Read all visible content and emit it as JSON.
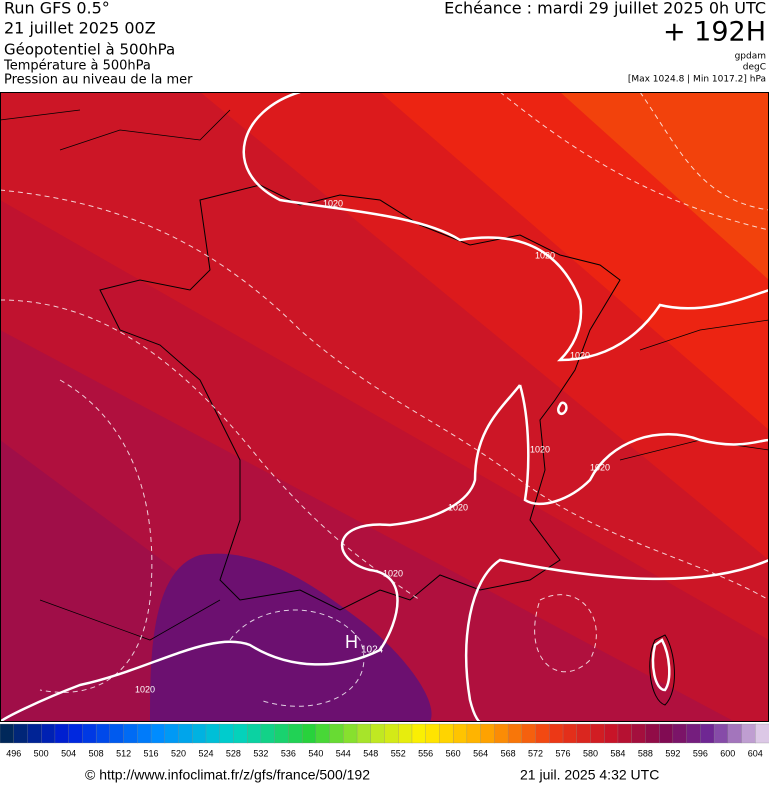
{
  "header": {
    "run": "Run GFS 0.5°",
    "date": "21 juillet 2025 00Z",
    "fields": [
      "Géopotentiel à 500hPa",
      "Température à 500hPa",
      "Pression au niveau de la mer"
    ],
    "forecast": "Echéance : mardi 29 juillet 2025 0h UTC",
    "lead": "+ 192H",
    "units": [
      "gpdam",
      "degC"
    ],
    "range": "[Max 1024.8 | Min 1017.2] hPa"
  },
  "map": {
    "isobar_labels": [
      "1020",
      "1020",
      "1020",
      "1020",
      "1020",
      "1020",
      "1020",
      "1020"
    ],
    "high": {
      "symbol": "H",
      "value": "1024"
    }
  },
  "colorbar": {
    "labels": [
      496,
      500,
      504,
      508,
      512,
      516,
      520,
      524,
      528,
      532,
      536,
      540,
      544,
      548,
      552,
      556,
      560,
      564,
      568,
      572,
      576,
      580,
      584,
      588,
      592,
      596,
      600,
      604
    ]
  },
  "footer": {
    "source": "© http://www.infoclimat.fr/z/gfs/france/500/192",
    "timestamp": "21 juil. 2025  4:32 UTC"
  }
}
